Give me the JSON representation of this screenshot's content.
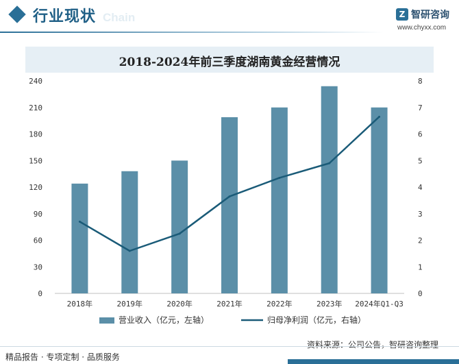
{
  "header": {
    "title": "行业现状",
    "watermark_en": "Chain",
    "logo_mark": "Z",
    "logo_name": "智研咨询",
    "logo_url": "www.chyxx.com"
  },
  "chart_data": {
    "type": "bar+line",
    "title": "2018-2024年前三季度湖南黄金经营情况",
    "categories": [
      "2018年",
      "2019年",
      "2020年",
      "2021年",
      "2022年",
      "2023年",
      "2024年Q1-Q3"
    ],
    "series": [
      {
        "name": "营业收入（亿元，左轴）",
        "type": "bar",
        "axis": "left",
        "color": "#5b8fa8",
        "values": [
          124,
          138,
          150,
          199,
          210,
          234,
          210
        ]
      },
      {
        "name": "归母净利润（亿元，右轴）",
        "type": "line",
        "axis": "right",
        "color": "#1a5b78",
        "values": [
          2.7,
          1.6,
          2.25,
          3.65,
          4.35,
          4.9,
          6.65
        ]
      }
    ],
    "y_left": {
      "min": 0,
      "max": 240,
      "ticks": [
        0,
        30,
        60,
        90,
        120,
        150,
        180,
        210,
        240
      ]
    },
    "y_right": {
      "min": 0,
      "max": 8,
      "ticks": [
        0,
        1,
        2,
        3,
        4,
        5,
        6,
        7,
        8
      ]
    },
    "grid": false,
    "legend_position": "bottom"
  },
  "footer": {
    "left": "精品报告 · 专项定制 · 品质服务",
    "source": "资料来源：公司公告，智研咨询整理"
  }
}
